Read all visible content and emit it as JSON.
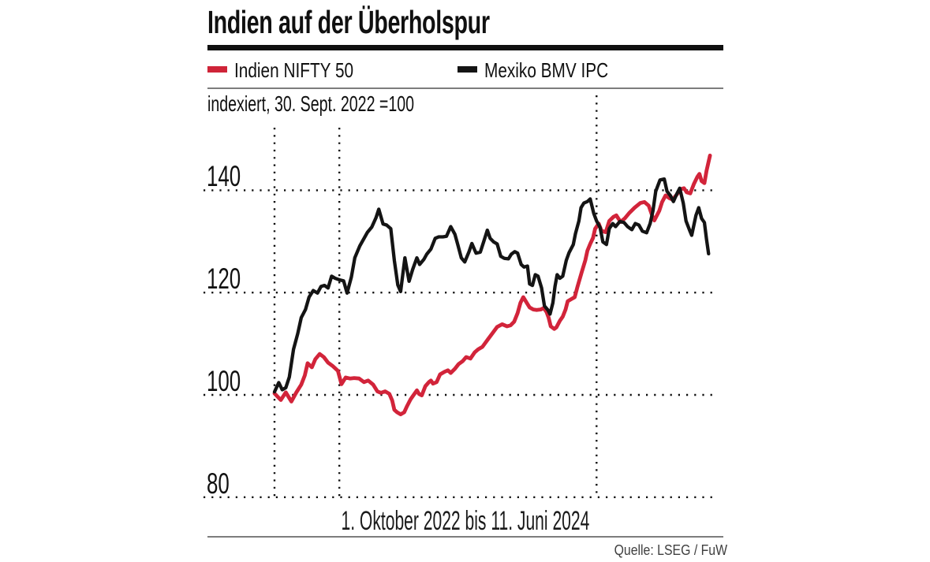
{
  "header": {
    "title": "Indien auf der Überholspur"
  },
  "legend": [
    {
      "label": "Indien NIFTY 50",
      "color": "#cf2438"
    },
    {
      "label": "Mexiko BMV IPC",
      "color": "#141414"
    }
  ],
  "subtitle": "indexiert, 30. Sept. 2022 =100",
  "caption": "1. Oktober 2022 bis 11. Juni 2024",
  "source": "Quelle: LSEG / FuW",
  "chart_data": {
    "type": "line",
    "title": "Indien auf der Überholspur",
    "subtitle": "indexiert, 30. Sept. 2022 =100",
    "x_range_dates": [
      "2022-10-01",
      "2024-06-11"
    ],
    "x_unit": "days since 2022-10-01",
    "x_total_days": 619,
    "ylim": [
      76,
      150
    ],
    "yticks": [
      140,
      120,
      100,
      80
    ],
    "grid": {
      "h_values": [
        140,
        120,
        100,
        80
      ],
      "v_days": [
        0,
        92,
        457
      ]
    },
    "legend_position": "top",
    "series": [
      {
        "name": "Indien NIFTY 50",
        "color": "#d2243a",
        "points": [
          [
            0,
            100.3
          ],
          [
            9,
            99
          ],
          [
            16,
            100.5
          ],
          [
            24,
            98.7
          ],
          [
            31,
            100.5
          ],
          [
            38,
            102
          ],
          [
            43,
            103.8
          ],
          [
            47,
            106.2
          ],
          [
            53,
            105.4
          ],
          [
            58,
            107
          ],
          [
            64,
            108
          ],
          [
            70,
            107.4
          ],
          [
            76,
            106.3
          ],
          [
            83,
            105.6
          ],
          [
            90,
            104.7
          ],
          [
            95,
            102.1
          ],
          [
            101,
            103.4
          ],
          [
            107,
            103.2
          ],
          [
            113,
            103.3
          ],
          [
            120,
            103.2
          ],
          [
            127,
            102.5
          ],
          [
            133,
            102.8
          ],
          [
            140,
            102
          ],
          [
            146,
            100.7
          ],
          [
            151,
            100.4
          ],
          [
            157,
            100.7
          ],
          [
            163,
            100.2
          ],
          [
            167,
            98.9
          ],
          [
            170,
            97.1
          ],
          [
            174,
            96.6
          ],
          [
            179,
            96.2
          ],
          [
            184,
            96.6
          ],
          [
            188,
            97.8
          ],
          [
            193,
            99.1
          ],
          [
            197,
            99.9
          ],
          [
            202,
            100.9
          ],
          [
            205,
            100.2
          ],
          [
            209,
            99.9
          ],
          [
            214,
            101.7
          ],
          [
            219,
            102.5
          ],
          [
            222,
            102.8
          ],
          [
            225,
            102.2
          ],
          [
            230,
            102.5
          ],
          [
            235,
            104
          ],
          [
            241,
            104.5
          ],
          [
            246,
            104.8
          ],
          [
            250,
            104.3
          ],
          [
            256,
            105.1
          ],
          [
            261,
            106
          ],
          [
            267,
            106.6
          ],
          [
            272,
            107.4
          ],
          [
            278,
            107.1
          ],
          [
            284,
            108.3
          ],
          [
            289,
            108.9
          ],
          [
            295,
            109.4
          ],
          [
            303,
            110.9
          ],
          [
            309,
            112
          ],
          [
            316,
            113.3
          ],
          [
            323,
            113.8
          ],
          [
            330,
            113.4
          ],
          [
            335,
            113.6
          ],
          [
            340,
            114.3
          ],
          [
            345,
            116
          ],
          [
            349,
            118
          ],
          [
            353,
            119.1
          ],
          [
            358,
            118
          ],
          [
            362,
            117.1
          ],
          [
            367,
            116.7
          ],
          [
            372,
            116.6
          ],
          [
            378,
            116.7
          ],
          [
            382,
            117
          ],
          [
            386,
            116.2
          ],
          [
            389,
            115.1
          ],
          [
            392,
            113.4
          ],
          [
            397,
            112.9
          ],
          [
            400,
            113.2
          ],
          [
            405,
            114.5
          ],
          [
            409,
            115.3
          ],
          [
            413,
            116.7
          ],
          [
            416,
            118.3
          ],
          [
            421,
            118.7
          ],
          [
            426,
            119.1
          ],
          [
            430,
            121.2
          ],
          [
            436,
            124
          ],
          [
            441,
            126.3
          ],
          [
            444,
            128.2
          ],
          [
            448,
            129.5
          ],
          [
            452,
            130.7
          ],
          [
            455,
            132.5
          ],
          [
            460,
            133.5
          ],
          [
            464,
            132.1
          ],
          [
            470,
            131.8
          ],
          [
            475,
            134
          ],
          [
            481,
            134.8
          ],
          [
            485,
            135.1
          ],
          [
            491,
            133.8
          ],
          [
            497,
            134.5
          ],
          [
            503,
            135.5
          ],
          [
            511,
            136.6
          ],
          [
            519,
            137.5
          ],
          [
            525,
            137.7
          ],
          [
            531,
            137
          ],
          [
            536,
            135
          ],
          [
            539,
            134.1
          ],
          [
            546,
            136
          ],
          [
            550,
            137.7
          ],
          [
            555,
            139
          ],
          [
            561,
            138.4
          ],
          [
            565,
            138.2
          ],
          [
            571,
            139.2
          ],
          [
            576,
            140.2
          ],
          [
            581,
            140.4
          ],
          [
            585,
            139.6
          ],
          [
            590,
            139.4
          ],
          [
            595,
            141.2
          ],
          [
            600,
            142.6
          ],
          [
            603,
            143.2
          ],
          [
            606,
            141.8
          ],
          [
            610,
            141.4
          ],
          [
            613,
            143.8
          ],
          [
            618,
            146.8
          ]
        ]
      },
      {
        "name": "Mexiko BMV IPC",
        "color": "#141414",
        "points": [
          [
            0,
            100.6
          ],
          [
            6,
            102.4
          ],
          [
            11,
            101
          ],
          [
            16,
            101.4
          ],
          [
            21,
            103.5
          ],
          [
            27,
            108.9
          ],
          [
            33,
            112
          ],
          [
            38,
            115.1
          ],
          [
            44,
            116.7
          ],
          [
            49,
            119.1
          ],
          [
            55,
            120.4
          ],
          [
            61,
            119.9
          ],
          [
            66,
            121.2
          ],
          [
            71,
            121.4
          ],
          [
            76,
            120.9
          ],
          [
            81,
            123.2
          ],
          [
            86,
            122.8
          ],
          [
            92,
            122.5
          ],
          [
            98,
            122.3
          ],
          [
            103,
            119.9
          ],
          [
            109,
            123
          ],
          [
            114,
            126.8
          ],
          [
            121,
            129.1
          ],
          [
            127,
            130.6
          ],
          [
            132,
            131.8
          ],
          [
            138,
            132.8
          ],
          [
            144,
            134.6
          ],
          [
            148,
            136.3
          ],
          [
            154,
            133.4
          ],
          [
            159,
            133.2
          ],
          [
            165,
            132.5
          ],
          [
            170,
            126.3
          ],
          [
            175,
            121.5
          ],
          [
            179,
            120.2
          ],
          [
            185,
            126.8
          ],
          [
            191,
            122.2
          ],
          [
            196,
            124.5
          ],
          [
            202,
            126.8
          ],
          [
            206,
            125.5
          ],
          [
            212,
            126.5
          ],
          [
            216,
            127.5
          ],
          [
            222,
            128.5
          ],
          [
            228,
            130.6
          ],
          [
            233,
            130.9
          ],
          [
            239,
            130.9
          ],
          [
            244,
            131
          ],
          [
            250,
            132.9
          ],
          [
            256,
            131.4
          ],
          [
            260,
            129.4
          ],
          [
            265,
            126.8
          ],
          [
            270,
            126
          ],
          [
            276,
            128
          ],
          [
            280,
            129.6
          ],
          [
            286,
            127.7
          ],
          [
            292,
            127.9
          ],
          [
            297,
            130
          ],
          [
            302,
            132.2
          ],
          [
            306,
            130.6
          ],
          [
            311,
            129.9
          ],
          [
            316,
            129.5
          ],
          [
            321,
            127.1
          ],
          [
            326,
            126.7
          ],
          [
            332,
            126.6
          ],
          [
            336,
            127.5
          ],
          [
            341,
            128
          ],
          [
            345,
            127.7
          ],
          [
            350,
            125.5
          ],
          [
            354,
            125
          ],
          [
            359,
            125.2
          ],
          [
            362,
            121.7
          ],
          [
            366,
            121.4
          ],
          [
            370,
            123.5
          ],
          [
            374,
            123.2
          ],
          [
            379,
            120.9
          ],
          [
            383,
            117.4
          ],
          [
            388,
            116.6
          ],
          [
            391,
            115.8
          ],
          [
            395,
            118
          ],
          [
            398,
            121.2
          ],
          [
            401,
            123.5
          ],
          [
            405,
            122.8
          ],
          [
            409,
            123.2
          ],
          [
            414,
            126.3
          ],
          [
            418,
            127.8
          ],
          [
            424,
            129.4
          ],
          [
            427,
            131.5
          ],
          [
            432,
            134
          ],
          [
            435,
            136.6
          ],
          [
            439,
            137.5
          ],
          [
            444,
            137.8
          ],
          [
            448,
            138.3
          ],
          [
            453,
            135.5
          ],
          [
            457,
            134
          ],
          [
            462,
            132.7
          ],
          [
            466,
            129.9
          ],
          [
            471,
            129.4
          ],
          [
            475,
            132.5
          ],
          [
            480,
            133.5
          ],
          [
            484,
            132.9
          ],
          [
            490,
            133.9
          ],
          [
            496,
            133.7
          ],
          [
            501,
            132.9
          ],
          [
            507,
            132.3
          ],
          [
            512,
            133.5
          ],
          [
            517,
            133.2
          ],
          [
            522,
            132
          ],
          [
            528,
            131.7
          ],
          [
            533,
            133.5
          ],
          [
            537,
            136
          ],
          [
            541,
            139.8
          ],
          [
            547,
            142
          ],
          [
            553,
            142.2
          ],
          [
            557,
            139.8
          ],
          [
            562,
            138.9
          ],
          [
            566,
            137.8
          ],
          [
            571,
            139.3
          ],
          [
            575,
            140.4
          ],
          [
            580,
            137.5
          ],
          [
            584,
            134
          ],
          [
            589,
            132.2
          ],
          [
            592,
            131.2
          ],
          [
            598,
            135.1
          ],
          [
            602,
            136.6
          ],
          [
            606,
            134.5
          ],
          [
            610,
            133.7
          ],
          [
            613,
            130.4
          ],
          [
            616,
            127.6
          ]
        ]
      }
    ]
  }
}
